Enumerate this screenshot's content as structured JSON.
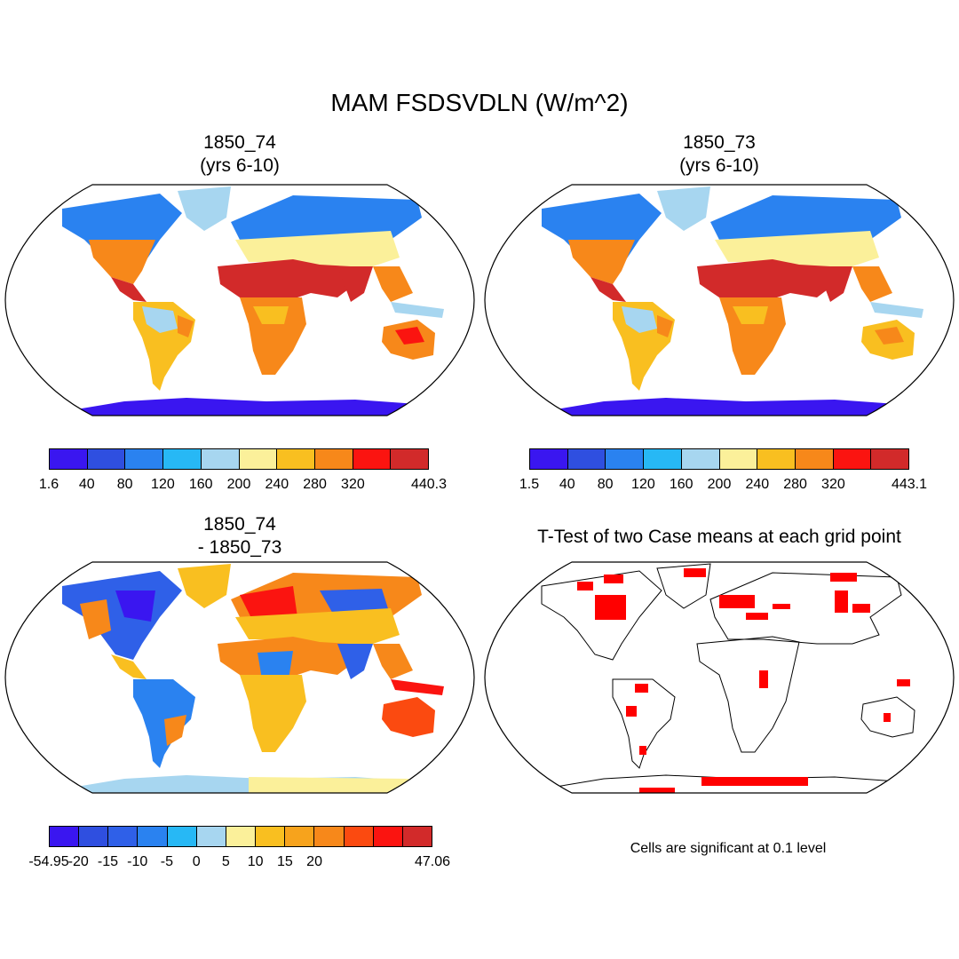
{
  "title": "MAM FSDSVDLN (W/m^2)",
  "panels": [
    {
      "title_line1": "1850_74",
      "title_line2": "(yrs 6-10)",
      "colorbar": {
        "colors": [
          "#3a16f0",
          "#2f4fe0",
          "#2a82f0",
          "#27b8f5",
          "#a7d6f0",
          "#fbf09a",
          "#f9bf20",
          "#f7881a",
          "#fb1410",
          "#d22a2a"
        ],
        "labels": [
          "1.6",
          "40",
          "80",
          "120",
          "160",
          "200",
          "240",
          "280",
          "320",
          "440.3"
        ]
      }
    },
    {
      "title_line1": "1850_73",
      "title_line2": "(yrs 6-10)",
      "colorbar": {
        "colors": [
          "#3a16f0",
          "#2f4fe0",
          "#2a82f0",
          "#27b8f5",
          "#a7d6f0",
          "#fbf09a",
          "#f9bf20",
          "#f7881a",
          "#fb1410",
          "#d22a2a"
        ],
        "labels": [
          "1.5",
          "40",
          "80",
          "120",
          "160",
          "200",
          "240",
          "280",
          "320",
          "443.1"
        ]
      }
    },
    {
      "title_line1": "1850_74",
      "title_line2": "- 1850_73",
      "colorbar": {
        "colors": [
          "#3a16f0",
          "#2f4fe0",
          "#2f60e8",
          "#2a82f0",
          "#27b8f5",
          "#a7d6f0",
          "#fbf09a",
          "#f9bf20",
          "#f7a31c",
          "#f7881a",
          "#fb4a10",
          "#fb1410",
          "#d22a2a"
        ],
        "labels": [
          "-54.95",
          "-20",
          "-15",
          "-10",
          "-5",
          "0",
          "5",
          "10",
          "15",
          "20",
          "47.06"
        ]
      }
    },
    {
      "title_line1": "T-Test of two Case means at each grid point",
      "note": "Cells are significant at 0.1 level"
    }
  ]
}
